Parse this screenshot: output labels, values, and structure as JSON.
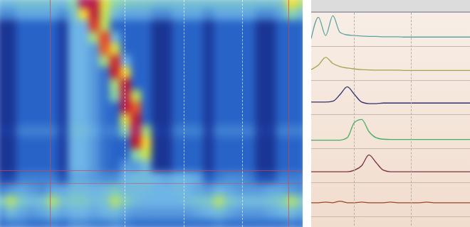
{
  "chart_data": [
    {
      "type": "heatmap",
      "xlim": [
        0,
        30
      ],
      "ylim": [
        0,
        20
      ],
      "tick_labels": false,
      "color_range": [
        0,
        100
      ],
      "cells": [
        [
          30,
          30,
          32,
          32,
          32,
          32,
          30,
          40,
          95,
          90,
          55,
          40,
          36,
          34,
          34,
          32,
          32,
          32,
          32,
          32,
          32,
          32,
          32,
          32,
          32,
          32,
          32,
          34,
          60,
          45
        ],
        [
          22,
          22,
          26,
          26,
          26,
          26,
          22,
          32,
          60,
          88,
          50,
          30,
          26,
          26,
          26,
          22,
          22,
          26,
          26,
          26,
          22,
          26,
          26,
          26,
          26,
          22,
          22,
          26,
          40,
          30
        ],
        [
          6,
          6,
          16,
          16,
          16,
          16,
          8,
          28,
          28,
          75,
          48,
          16,
          16,
          16,
          16,
          6,
          6,
          16,
          16,
          16,
          7,
          16,
          16,
          16,
          16,
          6,
          6,
          16,
          16,
          16
        ],
        [
          6,
          6,
          16,
          16,
          16,
          16,
          8,
          28,
          28,
          45,
          72,
          30,
          16,
          16,
          16,
          6,
          6,
          16,
          16,
          16,
          7,
          16,
          16,
          16,
          16,
          6,
          6,
          16,
          16,
          16
        ],
        [
          6,
          6,
          16,
          16,
          16,
          16,
          8,
          28,
          28,
          24,
          70,
          55,
          16,
          16,
          16,
          6,
          6,
          16,
          16,
          16,
          7,
          16,
          16,
          16,
          16,
          6,
          6,
          16,
          16,
          16
        ],
        [
          6,
          6,
          16,
          16,
          16,
          16,
          8,
          28,
          28,
          24,
          45,
          80,
          28,
          16,
          16,
          6,
          6,
          16,
          16,
          16,
          7,
          16,
          16,
          16,
          16,
          6,
          6,
          16,
          16,
          16
        ],
        [
          6,
          6,
          16,
          16,
          16,
          16,
          8,
          28,
          28,
          24,
          18,
          82,
          60,
          16,
          16,
          6,
          6,
          16,
          16,
          16,
          7,
          16,
          16,
          16,
          16,
          6,
          6,
          16,
          16,
          16
        ],
        [
          6,
          6,
          16,
          16,
          16,
          16,
          8,
          28,
          28,
          24,
          18,
          45,
          86,
          16,
          16,
          6,
          6,
          16,
          16,
          16,
          7,
          16,
          16,
          16,
          16,
          6,
          6,
          16,
          16,
          16
        ],
        [
          6,
          6,
          16,
          16,
          16,
          16,
          8,
          28,
          28,
          24,
          18,
          40,
          92,
          50,
          16,
          6,
          6,
          16,
          16,
          16,
          7,
          16,
          16,
          16,
          16,
          6,
          6,
          16,
          16,
          16
        ],
        [
          6,
          6,
          16,
          16,
          16,
          16,
          8,
          28,
          28,
          24,
          18,
          16,
          90,
          70,
          16,
          6,
          6,
          16,
          16,
          16,
          7,
          16,
          16,
          16,
          16,
          6,
          6,
          16,
          16,
          16
        ],
        [
          6,
          6,
          16,
          16,
          16,
          16,
          8,
          28,
          28,
          24,
          18,
          16,
          55,
          88,
          16,
          6,
          6,
          16,
          16,
          16,
          7,
          16,
          16,
          16,
          16,
          6,
          6,
          16,
          16,
          16
        ],
        [
          8,
          8,
          20,
          20,
          20,
          20,
          10,
          30,
          30,
          26,
          20,
          20,
          40,
          95,
          45,
          8,
          8,
          20,
          20,
          20,
          9,
          20,
          20,
          20,
          20,
          8,
          8,
          20,
          20,
          20
        ],
        [
          6,
          6,
          16,
          16,
          16,
          16,
          8,
          28,
          28,
          24,
          18,
          16,
          16,
          85,
          60,
          6,
          6,
          16,
          16,
          16,
          7,
          16,
          16,
          16,
          16,
          6,
          6,
          16,
          16,
          16
        ],
        [
          6,
          6,
          16,
          16,
          16,
          16,
          8,
          28,
          28,
          24,
          18,
          16,
          16,
          40,
          50,
          6,
          6,
          16,
          16,
          16,
          7,
          16,
          16,
          16,
          16,
          6,
          6,
          16,
          16,
          16
        ],
        [
          6,
          6,
          16,
          16,
          16,
          16,
          8,
          28,
          28,
          24,
          18,
          16,
          24,
          24,
          30,
          6,
          6,
          16,
          16,
          16,
          7,
          16,
          16,
          16,
          16,
          6,
          6,
          16,
          16,
          16
        ],
        [
          10,
          10,
          20,
          20,
          20,
          20,
          12,
          26,
          26,
          24,
          22,
          22,
          28,
          30,
          30,
          28,
          26,
          28,
          28,
          26,
          14,
          20,
          22,
          22,
          20,
          12,
          12,
          20,
          20,
          20
        ],
        [
          20,
          24,
          26,
          24,
          22,
          26,
          26,
          30,
          30,
          28,
          30,
          34,
          30,
          30,
          30,
          28,
          28,
          30,
          28,
          26,
          24,
          28,
          26,
          24,
          24,
          24,
          26,
          26,
          24,
          22
        ],
        [
          34,
          46,
          34,
          30,
          32,
          46,
          32,
          34,
          34,
          30,
          32,
          46,
          36,
          30,
          28,
          28,
          28,
          28,
          30,
          32,
          34,
          46,
          34,
          30,
          30,
          30,
          32,
          36,
          46,
          34
        ],
        [
          24,
          30,
          26,
          24,
          26,
          30,
          26,
          28,
          28,
          26,
          28,
          30,
          26,
          24,
          24,
          24,
          24,
          24,
          24,
          26,
          28,
          30,
          26,
          24,
          24,
          24,
          26,
          28,
          30,
          26
        ],
        [
          18,
          20,
          20,
          18,
          18,
          20,
          18,
          22,
          22,
          20,
          20,
          22,
          20,
          18,
          18,
          18,
          18,
          18,
          18,
          18,
          18,
          20,
          18,
          18,
          18,
          18,
          18,
          18,
          20,
          18
        ]
      ]
    },
    {
      "type": "line",
      "x": [
        0,
        1,
        2,
        3,
        4,
        5,
        6,
        7,
        8,
        9,
        10,
        11,
        12,
        13,
        14,
        15,
        16,
        17,
        18,
        19,
        20,
        21,
        22
      ],
      "xlim": [
        0,
        22
      ],
      "ylim": [
        0,
        1
      ],
      "tick_labels": false,
      "series": [
        {
          "color": "#5aa3a3",
          "values": [
            0.2,
            0.9,
            0.3,
            0.95,
            0.4,
            0.32,
            0.3,
            0.28,
            0.27,
            0.27,
            0.26,
            0.26,
            0.26,
            0.25,
            0.25,
            0.25,
            0.25,
            0.25,
            0.25,
            0.25,
            0.25,
            0.25,
            0.25
          ]
        },
        {
          "color": "#a3a352",
          "values": [
            0.3,
            0.45,
            0.7,
            0.5,
            0.4,
            0.35,
            0.32,
            0.3,
            0.29,
            0.28,
            0.28,
            0.28,
            0.28,
            0.27,
            0.27,
            0.27,
            0.27,
            0.27,
            0.27,
            0.27,
            0.27,
            0.27,
            0.27
          ]
        },
        {
          "color": "#30306e",
          "values": [
            0.35,
            0.35,
            0.35,
            0.38,
            0.6,
            0.85,
            0.6,
            0.35,
            0.3,
            0.3,
            0.32,
            0.32,
            0.32,
            0.32,
            0.32,
            0.32,
            0.32,
            0.32,
            0.32,
            0.32,
            0.32,
            0.32,
            0.32
          ]
        },
        {
          "color": "#45b060",
          "values": [
            0.22,
            0.22,
            0.22,
            0.22,
            0.22,
            0.3,
            0.8,
            0.9,
            0.5,
            0.3,
            0.25,
            0.24,
            0.24,
            0.24,
            0.24,
            0.24,
            0.24,
            0.24,
            0.24,
            0.24,
            0.24,
            0.24,
            0.24
          ]
        },
        {
          "color": "#7e3040",
          "values": [
            0.3,
            0.3,
            0.3,
            0.3,
            0.3,
            0.3,
            0.35,
            0.5,
            0.85,
            0.6,
            0.35,
            0.3,
            0.3,
            0.3,
            0.3,
            0.3,
            0.3,
            0.3,
            0.3,
            0.3,
            0.3,
            0.3,
            0.3
          ]
        },
        {
          "color": "#a04422",
          "values": [
            0.4,
            0.4,
            0.42,
            0.4,
            0.45,
            0.4,
            0.4,
            0.42,
            0.4,
            0.4,
            0.4,
            0.42,
            0.4,
            0.4,
            0.4,
            0.4,
            0.42,
            0.4,
            0.4,
            0.4,
            0.4,
            0.4,
            0.4
          ]
        }
      ]
    }
  ]
}
